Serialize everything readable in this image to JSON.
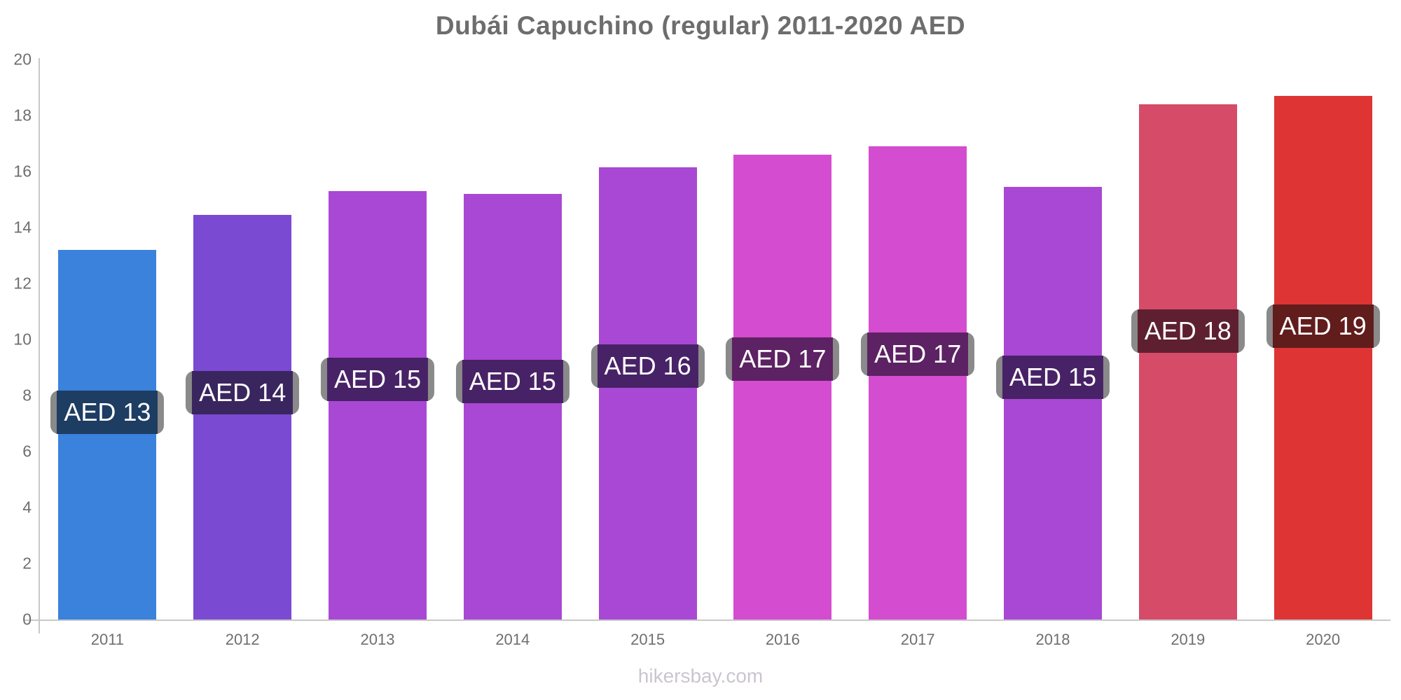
{
  "title": "Dubái Capuchino (regular) 2011-2020 AED",
  "watermark": "hikersbay.com",
  "colors": {
    "background": "#ffffff",
    "title_text": "#6d6d6d",
    "axis_text": "#6f6f6f",
    "axis_line": "#c8c8c8",
    "value_label_text": "#ffffff",
    "value_label_edge": "#8a8a8a",
    "watermark_text": "#cac5d0"
  },
  "chart_data": {
    "type": "bar",
    "title": "Dubái Capuchino (regular) 2011-2020 AED",
    "xlabel": "",
    "ylabel": "",
    "ylim": [
      0,
      20
    ],
    "yticks": [
      0,
      2,
      4,
      6,
      8,
      10,
      12,
      14,
      16,
      18,
      20
    ],
    "grid": false,
    "legend": false,
    "categories": [
      "2011",
      "2012",
      "2013",
      "2014",
      "2015",
      "2016",
      "2017",
      "2018",
      "2019",
      "2020"
    ],
    "values": [
      13.2,
      14.45,
      15.3,
      15.2,
      16.15,
      16.6,
      16.9,
      15.45,
      18.4,
      18.7
    ],
    "value_labels": [
      "AED 13",
      "AED 14",
      "AED 15",
      "AED 15",
      "AED 16",
      "AED 17",
      "AED 17",
      "AED 15",
      "AED 18",
      "AED 19"
    ],
    "bar_colors": [
      "#3a82dc",
      "#7b4ad2",
      "#a848d4",
      "#a848d4",
      "#a848d4",
      "#d44cd0",
      "#d44cd0",
      "#a848d4",
      "#d54b68",
      "#de3434"
    ],
    "label_bg_colors": [
      "#1d3d62",
      "#3a265e",
      "#482266",
      "#482266",
      "#482266",
      "#5d2263",
      "#5d2263",
      "#482266",
      "#5e2031",
      "#611c1c"
    ],
    "label_position_fraction": 0.56
  }
}
